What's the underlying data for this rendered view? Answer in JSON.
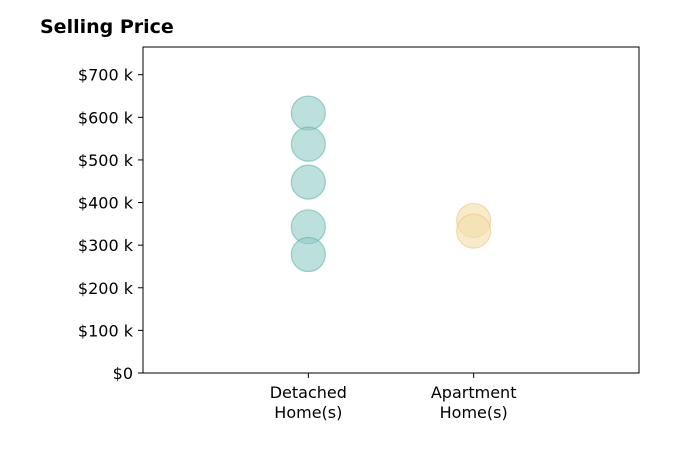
{
  "chart_data": {
    "type": "scatter",
    "title": "Selling Price",
    "xlabel": "",
    "ylabel": "",
    "categories": [
      "Detached\nHome(s)",
      "Apartment\nHome(s)"
    ],
    "series": [
      {
        "category_index": 0,
        "color": "#8fcbc5",
        "stroke": "#5fb3ab",
        "values": [
          610000,
          537000,
          448000,
          343000,
          278000
        ]
      },
      {
        "category_index": 1,
        "color": "#f3dda6",
        "stroke": "#e8c887",
        "values": [
          358000,
          333000
        ]
      }
    ],
    "ylim": [
      0,
      765000
    ],
    "xlim": [
      0,
      3
    ],
    "yticks": [
      0,
      100000,
      200000,
      300000,
      400000,
      500000,
      600000,
      700000
    ],
    "ytick_labels": [
      "$0",
      "$100 k",
      "$200 k",
      "$300 k",
      "$400 k",
      "$500 k",
      "$600 k",
      "$700 k"
    ],
    "grid": false,
    "legend": "none"
  }
}
